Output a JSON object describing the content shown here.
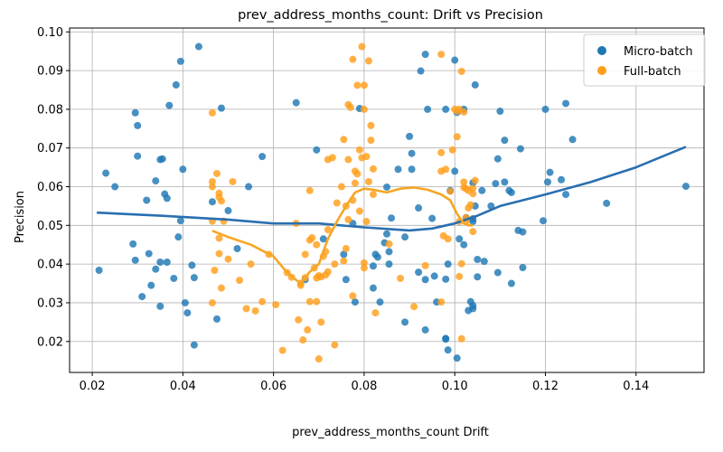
{
  "chart_data": {
    "type": "scatter",
    "title": "prev_address_months_count: Drift vs Precision",
    "xlabel": "prev_address_months_count Drift",
    "ylabel": "Precision",
    "xlim": [
      0.015,
      0.155
    ],
    "ylim": [
      0.012,
      0.101
    ],
    "xticks": [
      "0.02",
      "0.04",
      "0.06",
      "0.08",
      "0.10",
      "0.12",
      "0.14"
    ],
    "xtick_values": [
      0.02,
      0.04,
      0.06,
      0.08,
      0.1,
      0.12,
      0.14
    ],
    "yticks": [
      "0.02",
      "0.03",
      "0.04",
      "0.05",
      "0.06",
      "0.07",
      "0.08",
      "0.09",
      "0.10"
    ],
    "ytick_values": [
      0.02,
      0.03,
      0.04,
      0.05,
      0.06,
      0.07,
      0.08,
      0.09,
      0.1
    ],
    "grid": true,
    "legend_position": "top-right",
    "series": [
      {
        "name": "Micro-batch",
        "color": "#1f77b4",
        "points": [
          [
            0.0215,
            0.0384
          ],
          [
            0.023,
            0.0635
          ],
          [
            0.025,
            0.06
          ],
          [
            0.029,
            0.0452
          ],
          [
            0.0295,
            0.0791
          ],
          [
            0.0295,
            0.041
          ],
          [
            0.03,
            0.0679
          ],
          [
            0.03,
            0.0758
          ],
          [
            0.031,
            0.0316
          ],
          [
            0.032,
            0.0565
          ],
          [
            0.0325,
            0.0427
          ],
          [
            0.033,
            0.0345
          ],
          [
            0.034,
            0.0387
          ],
          [
            0.034,
            0.0615
          ],
          [
            0.035,
            0.067
          ],
          [
            0.035,
            0.0405
          ],
          [
            0.035,
            0.0291
          ],
          [
            0.0355,
            0.0672
          ],
          [
            0.036,
            0.0581
          ],
          [
            0.0365,
            0.057
          ],
          [
            0.0365,
            0.0405
          ],
          [
            0.037,
            0.081
          ],
          [
            0.038,
            0.0363
          ],
          [
            0.0385,
            0.0863
          ],
          [
            0.039,
            0.047
          ],
          [
            0.0395,
            0.0924
          ],
          [
            0.0395,
            0.0512
          ],
          [
            0.04,
            0.0645
          ],
          [
            0.0405,
            0.03
          ],
          [
            0.041,
            0.0274
          ],
          [
            0.042,
            0.0397
          ],
          [
            0.0425,
            0.0191
          ],
          [
            0.0425,
            0.0365
          ],
          [
            0.0435,
            0.0962
          ],
          [
            0.0465,
            0.0561
          ],
          [
            0.0475,
            0.0258
          ],
          [
            0.0485,
            0.0803
          ],
          [
            0.05,
            0.0538
          ],
          [
            0.052,
            0.044
          ],
          [
            0.0545,
            0.06
          ],
          [
            0.0575,
            0.0678
          ],
          [
            0.065,
            0.0817
          ],
          [
            0.067,
            0.036
          ],
          [
            0.0695,
            0.0695
          ],
          [
            0.071,
            0.0465
          ],
          [
            0.0755,
            0.0425
          ],
          [
            0.076,
            0.036
          ],
          [
            0.0775,
            0.0505
          ],
          [
            0.078,
            0.0302
          ],
          [
            0.079,
            0.0802
          ],
          [
            0.082,
            0.0395
          ],
          [
            0.082,
            0.0338
          ],
          [
            0.0825,
            0.0425
          ],
          [
            0.083,
            0.0418
          ],
          [
            0.0835,
            0.0302
          ],
          [
            0.0845,
            0.0455
          ],
          [
            0.085,
            0.0478
          ],
          [
            0.085,
            0.0599
          ],
          [
            0.0855,
            0.04
          ],
          [
            0.0855,
            0.0432
          ],
          [
            0.086,
            0.0519
          ],
          [
            0.0875,
            0.0645
          ],
          [
            0.089,
            0.047
          ],
          [
            0.089,
            0.025
          ],
          [
            0.09,
            0.073
          ],
          [
            0.0905,
            0.0686
          ],
          [
            0.0905,
            0.0645
          ],
          [
            0.092,
            0.0545
          ],
          [
            0.092,
            0.0379
          ],
          [
            0.0925,
            0.0899
          ],
          [
            0.0935,
            0.0942
          ],
          [
            0.0935,
            0.036
          ],
          [
            0.0935,
            0.023
          ],
          [
            0.094,
            0.08
          ],
          [
            0.095,
            0.0518
          ],
          [
            0.0955,
            0.0369
          ],
          [
            0.096,
            0.0302
          ],
          [
            0.098,
            0.08
          ],
          [
            0.098,
            0.0208
          ],
          [
            0.098,
            0.0361
          ],
          [
            0.098,
            0.0206
          ],
          [
            0.0985,
            0.04
          ],
          [
            0.0985,
            0.0178
          ],
          [
            0.099,
            0.059
          ],
          [
            0.1,
            0.064
          ],
          [
            0.1,
            0.0927
          ],
          [
            0.1005,
            0.0792
          ],
          [
            0.1005,
            0.0157
          ],
          [
            0.101,
            0.0465
          ],
          [
            0.102,
            0.08
          ],
          [
            0.102,
            0.045
          ],
          [
            0.1025,
            0.052
          ],
          [
            0.103,
            0.028
          ],
          [
            0.1035,
            0.0303
          ],
          [
            0.104,
            0.0293
          ],
          [
            0.104,
            0.0285
          ],
          [
            0.104,
            0.0517
          ],
          [
            0.1045,
            0.0863
          ],
          [
            0.104,
            0.051
          ],
          [
            0.104,
            0.061
          ],
          [
            0.1045,
            0.055
          ],
          [
            0.105,
            0.0412
          ],
          [
            0.105,
            0.0367
          ],
          [
            0.106,
            0.059
          ],
          [
            0.1065,
            0.0407
          ],
          [
            0.108,
            0.055
          ],
          [
            0.109,
            0.0608
          ],
          [
            0.1095,
            0.0672
          ],
          [
            0.1095,
            0.0378
          ],
          [
            0.11,
            0.0795
          ],
          [
            0.111,
            0.072
          ],
          [
            0.111,
            0.0612
          ],
          [
            0.112,
            0.059
          ],
          [
            0.1125,
            0.035
          ],
          [
            0.1125,
            0.0585
          ],
          [
            0.114,
            0.0487
          ],
          [
            0.1145,
            0.0698
          ],
          [
            0.115,
            0.0391
          ],
          [
            0.115,
            0.0483
          ],
          [
            0.1195,
            0.0512
          ],
          [
            0.12,
            0.08
          ],
          [
            0.1205,
            0.0612
          ],
          [
            0.121,
            0.0637
          ],
          [
            0.1235,
            0.0618
          ],
          [
            0.1245,
            0.0815
          ],
          [
            0.1245,
            0.058
          ],
          [
            0.126,
            0.0722
          ],
          [
            0.1335,
            0.0557
          ],
          [
            0.151,
            0.0601
          ]
        ],
        "trend": [
          [
            0.021,
            0.0533
          ],
          [
            0.035,
            0.0525
          ],
          [
            0.05,
            0.0515
          ],
          [
            0.06,
            0.0505
          ],
          [
            0.07,
            0.0505
          ],
          [
            0.08,
            0.0495
          ],
          [
            0.09,
            0.0487
          ],
          [
            0.095,
            0.0492
          ],
          [
            0.1,
            0.0505
          ],
          [
            0.105,
            0.0525
          ],
          [
            0.11,
            0.055
          ],
          [
            0.12,
            0.058
          ],
          [
            0.13,
            0.0612
          ],
          [
            0.14,
            0.065
          ],
          [
            0.151,
            0.0703
          ]
        ]
      },
      {
        "name": "Full-batch",
        "color": "#ff9f1c",
        "points": [
          [
            0.0465,
            0.0791
          ],
          [
            0.0465,
            0.06
          ],
          [
            0.0465,
            0.0613
          ],
          [
            0.0465,
            0.0511
          ],
          [
            0.0465,
            0.03
          ],
          [
            0.047,
            0.0384
          ],
          [
            0.0475,
            0.0634
          ],
          [
            0.048,
            0.0583
          ],
          [
            0.048,
            0.0573
          ],
          [
            0.048,
            0.0467
          ],
          [
            0.048,
            0.0427
          ],
          [
            0.0485,
            0.0563
          ],
          [
            0.0485,
            0.0338
          ],
          [
            0.049,
            0.0511
          ],
          [
            0.05,
            0.0413
          ],
          [
            0.051,
            0.0613
          ],
          [
            0.0525,
            0.0358
          ],
          [
            0.054,
            0.0285
          ],
          [
            0.055,
            0.04
          ],
          [
            0.056,
            0.0279
          ],
          [
            0.0575,
            0.0303
          ],
          [
            0.059,
            0.0425
          ],
          [
            0.0605,
            0.0295
          ],
          [
            0.062,
            0.0177
          ],
          [
            0.063,
            0.0378
          ],
          [
            0.064,
            0.0366
          ],
          [
            0.065,
            0.0505
          ],
          [
            0.0655,
            0.0256
          ],
          [
            0.066,
            0.035
          ],
          [
            0.066,
            0.0345
          ],
          [
            0.0665,
            0.0204
          ],
          [
            0.067,
            0.0425
          ],
          [
            0.067,
            0.0365
          ],
          [
            0.0675,
            0.023
          ],
          [
            0.068,
            0.059
          ],
          [
            0.068,
            0.0462
          ],
          [
            0.068,
            0.0303
          ],
          [
            0.0685,
            0.0468
          ],
          [
            0.069,
            0.039
          ],
          [
            0.0695,
            0.0303
          ],
          [
            0.0695,
            0.045
          ],
          [
            0.0695,
            0.0364
          ],
          [
            0.07,
            0.0155
          ],
          [
            0.07,
            0.037
          ],
          [
            0.0705,
            0.025
          ],
          [
            0.0705,
            0.0367
          ],
          [
            0.071,
            0.042
          ],
          [
            0.0715,
            0.0432
          ],
          [
            0.0715,
            0.0372
          ],
          [
            0.072,
            0.067
          ],
          [
            0.072,
            0.0489
          ],
          [
            0.072,
            0.038
          ],
          [
            0.073,
            0.0675
          ],
          [
            0.0735,
            0.04
          ],
          [
            0.0735,
            0.0191
          ],
          [
            0.074,
            0.0558
          ],
          [
            0.075,
            0.06
          ],
          [
            0.0755,
            0.0722
          ],
          [
            0.0755,
            0.0408
          ],
          [
            0.076,
            0.044
          ],
          [
            0.076,
            0.055
          ],
          [
            0.0765,
            0.0812
          ],
          [
            0.0765,
            0.0515
          ],
          [
            0.0765,
            0.067
          ],
          [
            0.077,
            0.0805
          ],
          [
            0.0775,
            0.0929
          ],
          [
            0.0775,
            0.0318
          ],
          [
            0.0775,
            0.0565
          ],
          [
            0.078,
            0.064
          ],
          [
            0.078,
            0.0609
          ],
          [
            0.0785,
            0.0862
          ],
          [
            0.0785,
            0.0633
          ],
          [
            0.079,
            0.0695
          ],
          [
            0.079,
            0.0537
          ],
          [
            0.0795,
            0.0962
          ],
          [
            0.0795,
            0.0675
          ],
          [
            0.08,
            0.0862
          ],
          [
            0.08,
            0.08
          ],
          [
            0.08,
            0.0403
          ],
          [
            0.08,
            0.039
          ],
          [
            0.0805,
            0.0678
          ],
          [
            0.0805,
            0.051
          ],
          [
            0.081,
            0.0925
          ],
          [
            0.081,
            0.0613
          ],
          [
            0.0815,
            0.0758
          ],
          [
            0.0815,
            0.072
          ],
          [
            0.082,
            0.058
          ],
          [
            0.082,
            0.0646
          ],
          [
            0.0825,
            0.0274
          ],
          [
            0.0855,
            0.0452
          ],
          [
            0.088,
            0.0363
          ],
          [
            0.091,
            0.029
          ],
          [
            0.0935,
            0.0396
          ],
          [
            0.097,
            0.0942
          ],
          [
            0.097,
            0.0688
          ],
          [
            0.097,
            0.064
          ],
          [
            0.097,
            0.0302
          ],
          [
            0.0975,
            0.0473
          ],
          [
            0.098,
            0.0645
          ],
          [
            0.0985,
            0.0465
          ],
          [
            0.099,
            0.0588
          ],
          [
            0.0995,
            0.0695
          ],
          [
            0.1,
            0.08
          ],
          [
            0.1005,
            0.0795
          ],
          [
            0.1005,
            0.0729
          ],
          [
            0.101,
            0.08
          ],
          [
            0.101,
            0.051
          ],
          [
            0.101,
            0.0368
          ],
          [
            0.1015,
            0.0898
          ],
          [
            0.1015,
            0.0401
          ],
          [
            0.1015,
            0.0207
          ],
          [
            0.102,
            0.0793
          ],
          [
            0.102,
            0.0598
          ],
          [
            0.102,
            0.0612
          ],
          [
            0.1025,
            0.0595
          ],
          [
            0.1025,
            0.052
          ],
          [
            0.1025,
            0.051
          ],
          [
            0.103,
            0.0545
          ],
          [
            0.103,
            0.059
          ],
          [
            0.1035,
            0.0553
          ],
          [
            0.104,
            0.0484
          ],
          [
            0.104,
            0.0596
          ],
          [
            0.104,
            0.0582
          ],
          [
            0.1045,
            0.0616
          ]
        ],
        "trend": [
          [
            0.0465,
            0.0486
          ],
          [
            0.05,
            0.047
          ],
          [
            0.055,
            0.045
          ],
          [
            0.06,
            0.042
          ],
          [
            0.0625,
            0.0385
          ],
          [
            0.064,
            0.0368
          ],
          [
            0.066,
            0.035
          ],
          [
            0.068,
            0.038
          ],
          [
            0.07,
            0.04
          ],
          [
            0.072,
            0.0465
          ],
          [
            0.074,
            0.051
          ],
          [
            0.076,
            0.055
          ],
          [
            0.078,
            0.0585
          ],
          [
            0.08,
            0.0595
          ],
          [
            0.082,
            0.0592
          ],
          [
            0.085,
            0.0585
          ],
          [
            0.088,
            0.0595
          ],
          [
            0.091,
            0.0598
          ],
          [
            0.094,
            0.0592
          ],
          [
            0.097,
            0.058
          ],
          [
            0.099,
            0.0565
          ],
          [
            0.1005,
            0.053
          ],
          [
            0.102,
            0.0505
          ],
          [
            0.103,
            0.05
          ],
          [
            0.104,
            0.05
          ]
        ]
      }
    ]
  }
}
